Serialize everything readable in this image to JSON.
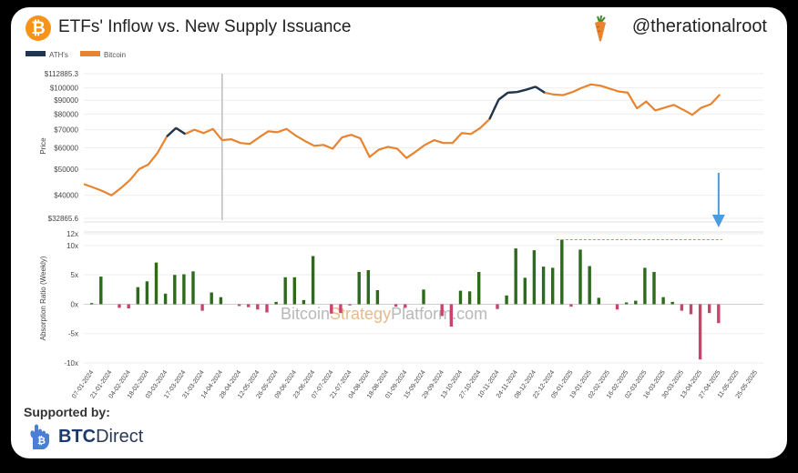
{
  "header": {
    "title": "ETFs' Inflow vs. New Supply Issuance",
    "handle": "@therationalroot",
    "logo_icon": "bitcoin-icon",
    "handle_icon": "carrot-icon"
  },
  "footer": {
    "supported_by": "Supported by:",
    "sponsor_bold": "BTC",
    "sponsor_rest": "Direct",
    "sponsor_icon": "btcdirect-hand-icon"
  },
  "watermark": {
    "part1": "Bitcoin",
    "part2": "Strategy",
    "part3": "Platform",
    "part4": ".com"
  },
  "colors": {
    "price": "#e8842f",
    "ath": "#1f3550",
    "positive": "#2d6a1c",
    "negative": "#c9446b",
    "arrow": "#4a9be0",
    "ath_line": "#e8842f"
  },
  "chart_data": [
    {
      "type": "line",
      "legend": [
        "ATH's",
        "Bitcoin"
      ],
      "ylabel": "Price",
      "yscale": "log",
      "ylim": [
        32865.6,
        112885.3
      ],
      "y_ticks": [
        "$112885.3",
        "$100000",
        "$90000",
        "$80000",
        "$70000",
        "$60000",
        "$50000",
        "$40000",
        "$32865.6"
      ],
      "y_tick_values": [
        112885.3,
        100000,
        90000,
        80000,
        70000,
        60000,
        50000,
        40000,
        32865.6
      ],
      "series": [
        {
          "name": "Bitcoin",
          "x": [
            "2024-01-01",
            "2024-01-08",
            "2024-01-15",
            "2024-01-22",
            "2024-01-29",
            "2024-02-05",
            "2024-02-12",
            "2024-02-19",
            "2024-02-26",
            "2024-03-04",
            "2024-03-11",
            "2024-03-18",
            "2024-03-25",
            "2024-04-01",
            "2024-04-08",
            "2024-04-15",
            "2024-04-22",
            "2024-04-29",
            "2024-05-06",
            "2024-05-13",
            "2024-05-20",
            "2024-05-27",
            "2024-06-03",
            "2024-06-10",
            "2024-06-17",
            "2024-06-24",
            "2024-07-01",
            "2024-07-08",
            "2024-07-15",
            "2024-07-22",
            "2024-07-29",
            "2024-08-05",
            "2024-08-12",
            "2024-08-19",
            "2024-08-26",
            "2024-09-02",
            "2024-09-09",
            "2024-09-16",
            "2024-09-23",
            "2024-09-30",
            "2024-10-07",
            "2024-10-14",
            "2024-10-21",
            "2024-10-28",
            "2024-11-04",
            "2024-11-11",
            "2024-11-18",
            "2024-11-25",
            "2024-12-02",
            "2024-12-09",
            "2024-12-16",
            "2024-12-23",
            "2024-12-30",
            "2025-01-06",
            "2025-01-13",
            "2025-01-20",
            "2025-01-27",
            "2025-02-03",
            "2025-02-10",
            "2025-02-17",
            "2025-02-24",
            "2025-03-03",
            "2025-03-10",
            "2025-03-17",
            "2025-03-24",
            "2025-03-31",
            "2025-04-07",
            "2025-04-14",
            "2025-04-21",
            "2025-04-28"
          ],
          "values": [
            44000,
            42800,
            41500,
            40000,
            42500,
            45500,
            50000,
            52000,
            57500,
            66000,
            71000,
            67500,
            70000,
            68000,
            70500,
            64000,
            64500,
            62500,
            62000,
            65500,
            69000,
            68500,
            70500,
            66500,
            63500,
            61000,
            61500,
            59500,
            65500,
            67000,
            65000,
            55500,
            59000,
            60500,
            59500,
            55000,
            58000,
            61500,
            64000,
            62500,
            62500,
            68000,
            67500,
            71000,
            76500,
            90500,
            96000,
            96500,
            98500,
            101000,
            96000,
            94500,
            94000,
            96500,
            100000,
            103000,
            102000,
            99500,
            97000,
            96000,
            84000,
            89000,
            82500,
            84500,
            86500,
            83000,
            79500,
            84500,
            87000,
            94500
          ]
        }
      ],
      "ath_points": [
        "2024-03-04",
        "2024-03-11",
        "2024-11-04",
        "2024-11-11",
        "2024-11-18",
        "2024-11-25",
        "2024-12-02",
        "2024-12-09"
      ],
      "vertical_marker": "2024-04-15"
    },
    {
      "type": "bar",
      "ylabel": "Absorption Ratio (Weekly)",
      "ylim": [
        -10,
        12
      ],
      "y_ticks": [
        "12x",
        "10x",
        "5x",
        "0x",
        "-5x",
        "-10x"
      ],
      "y_tick_values": [
        12,
        10,
        5,
        0,
        -5,
        -10
      ],
      "x_labels": [
        "07-01-2024",
        "21-01-2024",
        "04-02-2024",
        "18-02-2024",
        "03-03-2024",
        "17-03-2024",
        "31-03-2024",
        "14-04-2024",
        "28-04-2024",
        "12-05-2024",
        "26-05-2024",
        "09-06-2024",
        "23-06-2024",
        "07-07-2024",
        "21-07-2024",
        "04-08-2024",
        "18-08-2024",
        "01-09-2024",
        "15-09-2024",
        "29-09-2024",
        "13-10-2024",
        "27-10-2024",
        "10-11-2024",
        "24-11-2024",
        "08-12-2024",
        "22-12-2024",
        "05-01-2025",
        "19-01-2025",
        "02-02-2025",
        "16-02-2025",
        "02-03-2025",
        "16-03-2025",
        "30-03-2025",
        "13-04-2025",
        "27-04-2025",
        "11-05-2025",
        "25-05-2025"
      ],
      "categories": [
        "2024-01-07",
        "2024-01-14",
        "2024-01-21",
        "2024-01-28",
        "2024-02-04",
        "2024-02-11",
        "2024-02-18",
        "2024-02-25",
        "2024-03-03",
        "2024-03-10",
        "2024-03-17",
        "2024-03-24",
        "2024-03-31",
        "2024-04-07",
        "2024-04-14",
        "2024-04-21",
        "2024-04-28",
        "2024-05-05",
        "2024-05-12",
        "2024-05-19",
        "2024-05-26",
        "2024-06-02",
        "2024-06-09",
        "2024-06-16",
        "2024-06-23",
        "2024-06-30",
        "2024-07-07",
        "2024-07-14",
        "2024-07-21",
        "2024-07-28",
        "2024-08-04",
        "2024-08-11",
        "2024-08-18",
        "2024-08-25",
        "2024-09-01",
        "2024-09-08",
        "2024-09-15",
        "2024-09-22",
        "2024-09-29",
        "2024-10-06",
        "2024-10-13",
        "2024-10-20",
        "2024-10-27",
        "2024-11-03",
        "2024-11-10",
        "2024-11-17",
        "2024-11-24",
        "2024-12-01",
        "2024-12-08",
        "2024-12-15",
        "2024-12-22",
        "2024-12-29",
        "2025-01-05",
        "2025-01-12",
        "2025-01-19",
        "2025-01-26",
        "2025-02-02",
        "2025-02-09",
        "2025-02-16",
        "2025-02-23",
        "2025-03-02",
        "2025-03-09",
        "2025-03-16",
        "2025-03-23",
        "2025-03-30",
        "2025-04-06",
        "2025-04-13",
        "2025-04-20",
        "2025-04-27"
      ],
      "values": [
        0.2,
        4.7,
        0,
        -0.6,
        -0.7,
        2.9,
        3.9,
        7.1,
        1.8,
        5.0,
        5.1,
        5.6,
        -1.1,
        2.0,
        1.2,
        0,
        -0.3,
        -0.5,
        -0.9,
        -1.4,
        0.4,
        4.6,
        4.6,
        0.7,
        8.2,
        0,
        -1.6,
        -1.5,
        -0.2,
        5.5,
        5.8,
        2.4,
        0,
        -0.4,
        -0.6,
        0,
        2.5,
        0,
        -2.0,
        -3.8,
        2.3,
        2.2,
        5.5,
        0,
        -0.8,
        1.5,
        9.5,
        4.5,
        9.2,
        6.4,
        6.2,
        11.0,
        -0.4,
        9.3,
        6.5,
        1.1,
        0,
        -0.9,
        0.3,
        0.6,
        6.2,
        5.5,
        1.2,
        0.4,
        -1.1,
        -1.7,
        -9.4,
        -1.5,
        -3.2
      ]
    }
  ]
}
